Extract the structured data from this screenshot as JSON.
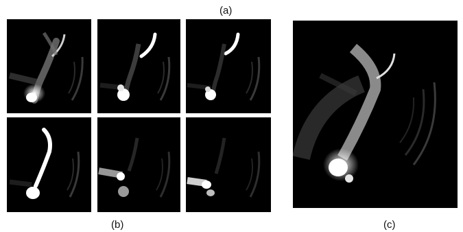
{
  "labels": {
    "top": "(a)",
    "left": "(b)",
    "right": "(c)"
  },
  "panels": [
    {
      "name": "panel-b-1",
      "highlight": "upper-arc"
    },
    {
      "name": "panel-b-2",
      "highlight": "upper-arc"
    },
    {
      "name": "panel-b-3",
      "highlight": "upper-arc"
    },
    {
      "name": "panel-b-4",
      "highlight": "mid-arc"
    },
    {
      "name": "panel-b-5",
      "highlight": "left-bar"
    },
    {
      "name": "panel-b-6",
      "highlight": "left-bar"
    },
    {
      "name": "panel-c",
      "highlight": "composite"
    }
  ],
  "colors": {
    "background": "#000000",
    "page": "#ffffff"
  }
}
